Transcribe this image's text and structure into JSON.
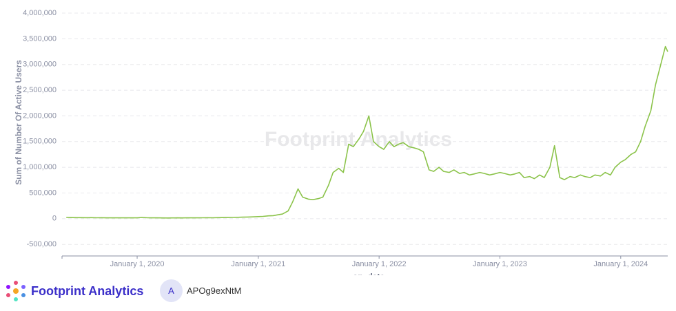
{
  "chart_data": {
    "type": "line",
    "y_label": "Sum of Number Of Active Users",
    "x_label": "on_date",
    "watermark": "Footprint Analytics",
    "color": "#8bc34a",
    "grid": true,
    "xlim": [
      "2019-05-19",
      "2024-05-22"
    ],
    "xticks": [
      {
        "value": "2020-01-01",
        "label": "January 1, 2020"
      },
      {
        "value": "2021-01-01",
        "label": "January 1, 2021"
      },
      {
        "value": "2022-01-01",
        "label": "January 1, 2022"
      },
      {
        "value": "2023-01-01",
        "label": "January 1, 2023"
      },
      {
        "value": "2024-01-01",
        "label": "January 1, 2024"
      }
    ],
    "ylim": [
      -725000,
      4000000
    ],
    "yticks": [
      {
        "value": -500000,
        "label": "-500,000"
      },
      0,
      {
        "value": 500000,
        "label": "500,000"
      },
      {
        "value": 1000000,
        "label": "1,000,000"
      },
      {
        "value": 1500000,
        "label": "1,500,000"
      },
      {
        "value": 2000000,
        "label": "2,000,000"
      },
      {
        "value": 2500000,
        "label": "2,500,000"
      },
      {
        "value": 3000000,
        "label": "3,000,000"
      },
      {
        "value": 3500000,
        "label": "3,500,000"
      },
      {
        "value": 4000000,
        "label": "4,000,000"
      }
    ],
    "x": [
      "2019-06-01",
      "2019-06-15",
      "2019-07-01",
      "2019-07-15",
      "2019-08-01",
      "2019-08-15",
      "2019-09-01",
      "2019-09-15",
      "2019-10-01",
      "2019-10-15",
      "2019-11-01",
      "2019-11-15",
      "2019-12-01",
      "2019-12-15",
      "2020-01-01",
      "2020-01-15",
      "2020-02-01",
      "2020-02-15",
      "2020-03-01",
      "2020-03-15",
      "2020-04-01",
      "2020-04-15",
      "2020-05-01",
      "2020-05-15",
      "2020-06-01",
      "2020-06-15",
      "2020-07-01",
      "2020-07-15",
      "2020-08-01",
      "2020-08-15",
      "2020-09-01",
      "2020-09-15",
      "2020-10-01",
      "2020-10-15",
      "2020-11-01",
      "2020-11-15",
      "2020-12-01",
      "2020-12-15",
      "2021-01-01",
      "2021-01-15",
      "2021-02-01",
      "2021-02-15",
      "2021-03-01",
      "2021-03-15",
      "2021-04-01",
      "2021-04-15",
      "2021-05-01",
      "2021-05-15",
      "2021-06-01",
      "2021-06-15",
      "2021-07-01",
      "2021-07-15",
      "2021-08-01",
      "2021-08-15",
      "2021-09-01",
      "2021-09-15",
      "2021-10-01",
      "2021-10-15",
      "2021-11-01",
      "2021-11-15",
      "2021-12-01",
      "2021-12-15",
      "2022-01-01",
      "2022-01-15",
      "2022-02-01",
      "2022-02-15",
      "2022-03-01",
      "2022-03-15",
      "2022-04-01",
      "2022-04-15",
      "2022-05-01",
      "2022-05-15",
      "2022-06-01",
      "2022-06-15",
      "2022-07-01",
      "2022-07-15",
      "2022-08-01",
      "2022-08-15",
      "2022-09-01",
      "2022-09-15",
      "2022-10-01",
      "2022-10-15",
      "2022-11-01",
      "2022-11-15",
      "2022-12-01",
      "2022-12-15",
      "2023-01-01",
      "2023-01-15",
      "2023-02-01",
      "2023-02-15",
      "2023-03-01",
      "2023-03-15",
      "2023-04-01",
      "2023-04-15",
      "2023-05-01",
      "2023-05-15",
      "2023-06-01",
      "2023-06-15",
      "2023-07-01",
      "2023-07-15",
      "2023-08-01",
      "2023-08-15",
      "2023-09-01",
      "2023-09-15",
      "2023-10-01",
      "2023-10-15",
      "2023-11-01",
      "2023-11-15",
      "2023-12-01",
      "2023-12-15",
      "2024-01-01",
      "2024-01-15",
      "2024-02-01",
      "2024-02-15",
      "2024-03-01",
      "2024-03-15",
      "2024-04-01",
      "2024-04-15",
      "2024-05-01",
      "2024-05-15",
      "2024-05-22"
    ],
    "values": [
      25000,
      22000,
      20000,
      21000,
      19000,
      20000,
      18000,
      19000,
      17000,
      18000,
      17000,
      16000,
      17000,
      18000,
      17000,
      25000,
      18000,
      17000,
      16000,
      15000,
      14000,
      15000,
      16000,
      15000,
      17000,
      18000,
      17000,
      18000,
      19000,
      18000,
      20000,
      22000,
      23000,
      25000,
      27000,
      30000,
      32000,
      35000,
      40000,
      45000,
      55000,
      60000,
      75000,
      90000,
      150000,
      330000,
      580000,
      420000,
      380000,
      370000,
      390000,
      420000,
      650000,
      900000,
      980000,
      900000,
      1450000,
      1400000,
      1550000,
      1700000,
      2000000,
      1500000,
      1400000,
      1350000,
      1500000,
      1400000,
      1450000,
      1480000,
      1400000,
      1380000,
      1350000,
      1300000,
      950000,
      920000,
      1000000,
      920000,
      900000,
      950000,
      880000,
      900000,
      850000,
      870000,
      900000,
      880000,
      850000,
      870000,
      900000,
      880000,
      850000,
      870000,
      900000,
      800000,
      820000,
      780000,
      850000,
      800000,
      1000000,
      1420000,
      800000,
      760000,
      820000,
      800000,
      850000,
      820000,
      800000,
      850000,
      830000,
      900000,
      850000,
      1000000,
      1100000,
      1150000,
      1250000,
      1300000,
      1500000,
      1800000,
      2100000,
      2600000,
      3000000,
      3350000,
      3250000
    ]
  },
  "footer": {
    "brand": "Footprint Analytics",
    "avatar": "A",
    "user": "APOg9exNtM"
  }
}
